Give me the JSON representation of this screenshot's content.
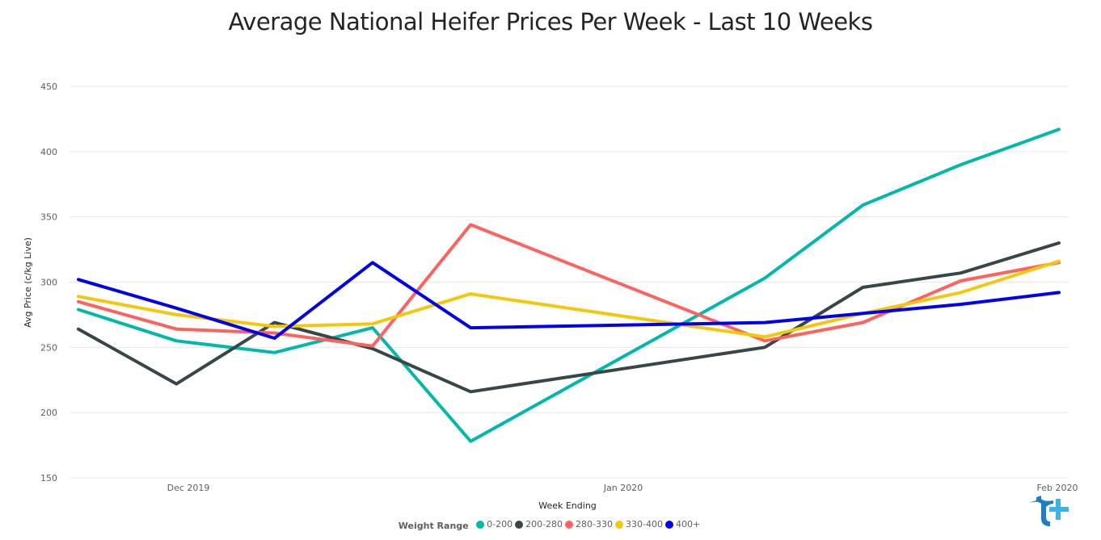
{
  "chart_data": {
    "type": "line",
    "title": "Average National Heifer Prices Per Week - Last 10 Weeks",
    "xlabel": "Week Ending",
    "ylabel": "Avg Price (c/kg Live)",
    "x": [
      "2019-11-22",
      "2019-11-29",
      "2019-12-06",
      "2019-12-13",
      "2019-12-20",
      "2019-12-27",
      "2020-01-03",
      "2020-01-10",
      "2020-01-17",
      "2020-01-24",
      "2020-01-31"
    ],
    "x_tick_labels": [
      "Dec 2019",
      "Jan 2020",
      "Feb 2020"
    ],
    "ylim": [
      150,
      450
    ],
    "y_ticks": [
      150,
      200,
      250,
      300,
      350,
      400,
      450
    ],
    "grid": true,
    "legend_title": "Weight Range",
    "legend_position": "bottom",
    "series": [
      {
        "name": "0-200",
        "color": "#01b8aa",
        "points": [
          [
            "2019-11-22",
            279
          ],
          [
            "2019-11-29",
            255
          ],
          [
            "2019-12-06",
            246
          ],
          [
            "2019-12-13",
            265
          ],
          [
            "2019-12-20",
            178
          ],
          [
            "2020-01-10",
            303
          ],
          [
            "2020-01-17",
            359
          ],
          [
            "2020-01-24",
            390
          ],
          [
            "2020-01-31",
            417
          ]
        ]
      },
      {
        "name": "200-280",
        "color": "#374649",
        "points": [
          [
            "2019-11-22",
            264
          ],
          [
            "2019-11-29",
            222
          ],
          [
            "2019-12-06",
            269
          ],
          [
            "2019-12-13",
            249
          ],
          [
            "2019-12-20",
            216
          ],
          [
            "2020-01-10",
            250
          ],
          [
            "2020-01-17",
            296
          ],
          [
            "2020-01-24",
            307
          ],
          [
            "2020-01-31",
            330
          ]
        ]
      },
      {
        "name": "280-330",
        "color": "#fd625e",
        "points": [
          [
            "2019-11-22",
            285
          ],
          [
            "2019-11-29",
            264
          ],
          [
            "2019-12-06",
            261
          ],
          [
            "2019-12-13",
            251
          ],
          [
            "2019-12-20",
            344
          ],
          [
            "2020-01-10",
            255
          ],
          [
            "2020-01-17",
            269
          ],
          [
            "2020-01-24",
            301
          ],
          [
            "2020-01-31",
            315
          ]
        ]
      },
      {
        "name": "330-400",
        "color": "#f2c80f",
        "points": [
          [
            "2019-11-22",
            289
          ],
          [
            "2019-11-29",
            275
          ],
          [
            "2019-12-06",
            266
          ],
          [
            "2019-12-13",
            268
          ],
          [
            "2019-12-20",
            291
          ],
          [
            "2020-01-10",
            258
          ],
          [
            "2020-01-17",
            276
          ],
          [
            "2020-01-24",
            292
          ],
          [
            "2020-01-31",
            316
          ]
        ]
      },
      {
        "name": "400+",
        "color": "#0000ee",
        "points": [
          [
            "2019-11-22",
            302
          ],
          [
            "2019-11-29",
            280
          ],
          [
            "2019-12-06",
            257
          ],
          [
            "2019-12-13",
            315
          ],
          [
            "2019-12-20",
            265
          ],
          [
            "2020-01-10",
            269
          ],
          [
            "2020-01-17",
            276
          ],
          [
            "2020-01-24",
            283
          ],
          [
            "2020-01-31",
            292
          ]
        ]
      }
    ]
  }
}
